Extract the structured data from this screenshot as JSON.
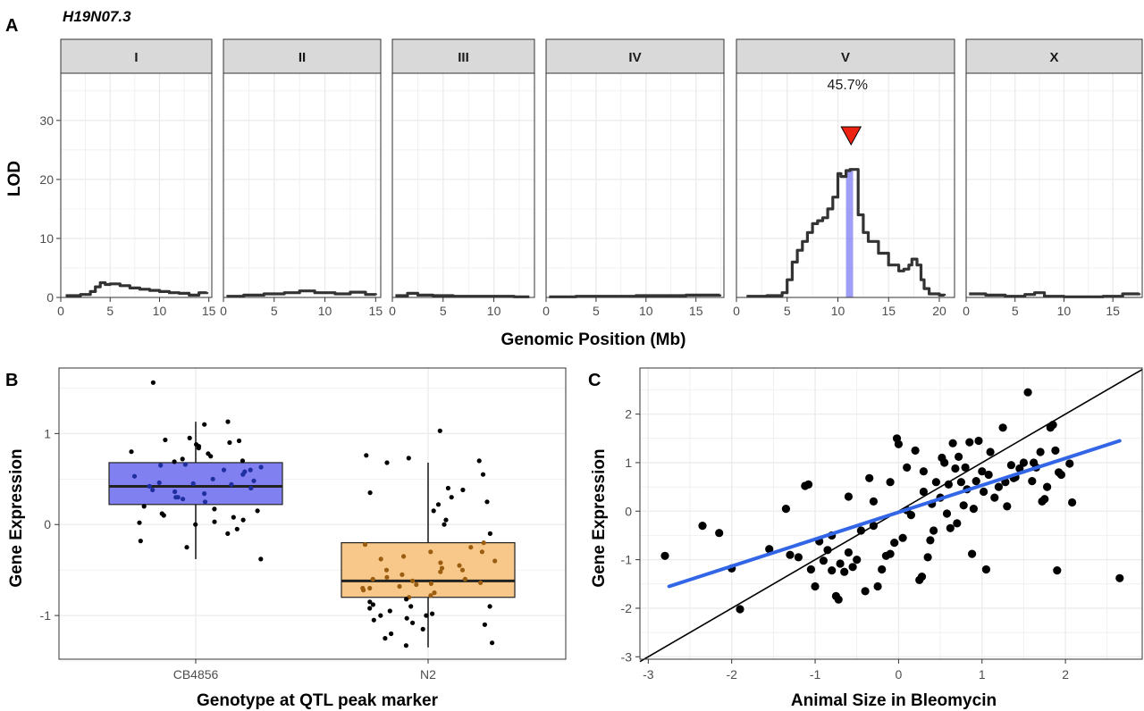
{
  "chart_data": [
    {
      "panel": "A",
      "type": "line",
      "title": "H19N07.3",
      "xlabel": "Genomic Position (Mb)",
      "ylabel": "LOD",
      "ylim": [
        0,
        38
      ],
      "yticks": [
        0,
        10,
        20,
        30
      ],
      "grid": true,
      "facets": [
        {
          "label": "I",
          "xlim": [
            0,
            15.3
          ],
          "xticks": [
            0,
            5,
            10,
            15
          ],
          "x": [
            0.5,
            2,
            3,
            3.5,
            4,
            4.5,
            5,
            6,
            7,
            8,
            9,
            10,
            11,
            12,
            13,
            14,
            14.8
          ],
          "y": [
            0.3,
            0.5,
            1,
            1.8,
            2.5,
            2.2,
            2.3,
            2,
            1.6,
            1.4,
            1.2,
            1,
            0.8,
            0.7,
            0.4,
            0.8,
            0.9
          ]
        },
        {
          "label": "II",
          "xlim": [
            0,
            15.5
          ],
          "xticks": [
            0,
            5,
            10,
            15
          ],
          "x": [
            0.3,
            2,
            4,
            6,
            7.5,
            9,
            11,
            12.5,
            14,
            15
          ],
          "y": [
            0.2,
            0.4,
            0.6,
            0.8,
            1.1,
            0.8,
            0.6,
            0.9,
            0.5,
            0.4
          ]
        },
        {
          "label": "III",
          "xlim": [
            0,
            14
          ],
          "xticks": [
            0,
            5,
            10
          ],
          "x": [
            0.3,
            1.5,
            2.5,
            4,
            6,
            8,
            10,
            12,
            13.5
          ],
          "y": [
            0.3,
            0.7,
            0.4,
            0.3,
            0.2,
            0.2,
            0.2,
            0.1,
            0.1
          ]
        },
        {
          "label": "IV",
          "xlim": [
            0,
            17.8
          ],
          "xticks": [
            0,
            5,
            10,
            15
          ],
          "x": [
            0.3,
            3,
            6,
            9,
            12,
            14,
            16,
            17.4
          ],
          "y": [
            0.1,
            0.2,
            0.2,
            0.3,
            0.3,
            0.4,
            0.4,
            0.5
          ]
        },
        {
          "label": "V",
          "xlim": [
            0,
            21.5
          ],
          "xticks": [
            0,
            5,
            10,
            15,
            20
          ],
          "x": [
            1,
            3,
            4.5,
            5,
            5.5,
            6,
            6.5,
            7,
            7.5,
            8,
            8.5,
            9,
            9.5,
            10,
            10.3,
            10.8,
            11.2,
            11.6,
            12,
            12.5,
            13,
            14,
            15,
            16,
            16.5,
            17,
            17.3,
            17.8,
            18.2,
            18.5,
            19,
            20,
            20.5
          ],
          "y": [
            0.2,
            0.3,
            0.8,
            3,
            6,
            8,
            9.5,
            11,
            12.5,
            13,
            13.5,
            15,
            17,
            21,
            20.5,
            21.5,
            21.7,
            21.7,
            14,
            11,
            9.5,
            7.5,
            5.5,
            4.5,
            4.8,
            5.5,
            6.5,
            5.5,
            3,
            1.5,
            0.6,
            0.4,
            0.3
          ],
          "peak_annotation": "45.7%",
          "peak_x": 11.3,
          "interval": [
            10.8,
            11.5
          ]
        },
        {
          "label": "X",
          "xlim": [
            0,
            18
          ],
          "xticks": [
            0,
            5,
            10,
            15
          ],
          "x": [
            0.3,
            2,
            4,
            6,
            7,
            8,
            10,
            12,
            14,
            16,
            17.7
          ],
          "y": [
            0.6,
            0.4,
            0.2,
            0.5,
            0.8,
            0.2,
            0.1,
            0.1,
            0.2,
            0.6,
            0.7
          ]
        }
      ]
    },
    {
      "panel": "B",
      "type": "box",
      "xlabel": "Genotype at QTL peak marker",
      "ylabel": "Gene Expression",
      "ylim": [
        -1.48,
        1.72
      ],
      "yticks": [
        -1,
        0,
        1
      ],
      "grid": true,
      "categories": [
        "CB4856",
        "N2"
      ],
      "boxes": [
        {
          "category": "CB4856",
          "q1": 0.22,
          "median": 0.42,
          "q3": 0.68,
          "whisker_low": -0.38,
          "whisker_high": 1.13,
          "fill": "#8080f0"
        },
        {
          "category": "N2",
          "q1": -0.8,
          "median": -0.62,
          "q3": -0.2,
          "whisker_low": -1.35,
          "whisker_high": 0.68,
          "fill": "#f8c88a"
        }
      ],
      "points": [
        {
          "category": "CB4856",
          "values": [
            1.56,
            1.13,
            1.1,
            0.95,
            0.93,
            0.92,
            0.9,
            0.88,
            0.86,
            0.84,
            0.8,
            0.78,
            0.75,
            0.72,
            0.7,
            0.69,
            0.66,
            0.65,
            0.63,
            0.6,
            0.58,
            0.55,
            0.53,
            0.5,
            0.48,
            0.46,
            0.44,
            0.42,
            0.4,
            0.38,
            0.36,
            0.34,
            0.3,
            0.28,
            0.25,
            0.2,
            0.17,
            0.15,
            0.12,
            0.1,
            0.08,
            0.05,
            0.03,
            0.02,
            0.0,
            -0.05,
            -0.1,
            -0.18,
            -0.25,
            -0.38,
            0.6,
            0.45,
            0.3
          ]
        },
        {
          "category": "N2",
          "values": [
            1.03,
            0.76,
            0.73,
            0.7,
            0.68,
            0.55,
            0.4,
            0.38,
            0.35,
            0.3,
            0.25,
            0.22,
            0.15,
            0.05,
            0.0,
            -0.1,
            -0.2,
            -0.22,
            -0.25,
            -0.3,
            -0.35,
            -0.38,
            -0.4,
            -0.42,
            -0.45,
            -0.48,
            -0.5,
            -0.52,
            -0.55,
            -0.58,
            -0.6,
            -0.62,
            -0.64,
            -0.66,
            -0.68,
            -0.7,
            -0.72,
            -0.75,
            -0.78,
            -0.8,
            -0.82,
            -0.85,
            -0.88,
            -0.9,
            -0.92,
            -0.95,
            -0.98,
            -1.0,
            -1.03,
            -1.05,
            -1.08,
            -1.1,
            -1.15,
            -1.2,
            -1.25,
            -1.3,
            -1.33,
            -0.5,
            -0.65,
            -0.7,
            -0.3,
            -0.9,
            -1.0,
            -0.6
          ]
        }
      ]
    },
    {
      "panel": "C",
      "type": "scatter",
      "xlabel": "Animal Size in Bleomycin",
      "ylabel": "Gene Expression",
      "xlim": [
        -3.1,
        2.92
      ],
      "ylim": [
        -3.05,
        2.95
      ],
      "xticks": [
        -3,
        -2,
        -1,
        0,
        1,
        2
      ],
      "yticks": [
        -3,
        -2,
        -1,
        0,
        1,
        2
      ],
      "grid": true,
      "fit_line": {
        "x": [
          -2.75,
          2.65
        ],
        "y": [
          -1.55,
          1.45
        ],
        "color": "#3366e6"
      },
      "identity_line": {
        "x": [
          -3.1,
          2.92
        ],
        "y": [
          -3.1,
          2.92
        ],
        "color": "#000000"
      },
      "points": [
        {
          "x": -2.8,
          "y": -0.92
        },
        {
          "x": -2.35,
          "y": -0.3
        },
        {
          "x": -2.15,
          "y": -0.45
        },
        {
          "x": -2.0,
          "y": -1.18
        },
        {
          "x": -1.9,
          "y": -2.02
        },
        {
          "x": -1.55,
          "y": -0.78
        },
        {
          "x": -1.35,
          "y": 0.05
        },
        {
          "x": -1.3,
          "y": -0.9
        },
        {
          "x": -1.12,
          "y": 0.52
        },
        {
          "x": -1.08,
          "y": 0.55
        },
        {
          "x": -1.05,
          "y": -1.2
        },
        {
          "x": -1.0,
          "y": -1.55
        },
        {
          "x": -0.95,
          "y": -0.62
        },
        {
          "x": -0.9,
          "y": -1.02
        },
        {
          "x": -0.85,
          "y": -0.8
        },
        {
          "x": -0.8,
          "y": -1.22
        },
        {
          "x": -0.75,
          "y": -1.75
        },
        {
          "x": -0.72,
          "y": -1.82
        },
        {
          "x": -0.7,
          "y": -1.08
        },
        {
          "x": -0.65,
          "y": -1.25
        },
        {
          "x": -0.6,
          "y": -0.85
        },
        {
          "x": -0.55,
          "y": -1.15
        },
        {
          "x": -0.5,
          "y": -1.0
        },
        {
          "x": -0.45,
          "y": -0.4
        },
        {
          "x": -0.4,
          "y": -1.65
        },
        {
          "x": -0.35,
          "y": 0.68
        },
        {
          "x": -0.3,
          "y": -0.3
        },
        {
          "x": -0.25,
          "y": -1.55
        },
        {
          "x": -0.2,
          "y": -1.2
        },
        {
          "x": -0.15,
          "y": -0.92
        },
        {
          "x": -0.1,
          "y": -0.88
        },
        {
          "x": -0.05,
          "y": -0.65
        },
        {
          "x": -0.02,
          "y": 1.5
        },
        {
          "x": 0.0,
          "y": 1.38
        },
        {
          "x": 0.05,
          "y": -0.55
        },
        {
          "x": 0.1,
          "y": 0.02
        },
        {
          "x": 0.15,
          "y": -0.08
        },
        {
          "x": 0.2,
          "y": 1.25
        },
        {
          "x": 0.25,
          "y": -1.42
        },
        {
          "x": 0.28,
          "y": -1.35
        },
        {
          "x": 0.3,
          "y": 0.82
        },
        {
          "x": 0.35,
          "y": -0.95
        },
        {
          "x": 0.38,
          "y": -0.6
        },
        {
          "x": 0.4,
          "y": 0.15
        },
        {
          "x": 0.42,
          "y": -0.4
        },
        {
          "x": 0.45,
          "y": 0.6
        },
        {
          "x": 0.5,
          "y": 0.28
        },
        {
          "x": 0.52,
          "y": 1.1
        },
        {
          "x": 0.55,
          "y": 1.0
        },
        {
          "x": 0.58,
          "y": -0.05
        },
        {
          "x": 0.6,
          "y": 0.55
        },
        {
          "x": 0.65,
          "y": 1.4
        },
        {
          "x": 0.68,
          "y": 0.88
        },
        {
          "x": 0.7,
          "y": -0.25
        },
        {
          "x": 0.72,
          "y": 1.12
        },
        {
          "x": 0.75,
          "y": 0.6
        },
        {
          "x": 0.78,
          "y": 0.12
        },
        {
          "x": 0.8,
          "y": 0.9
        },
        {
          "x": 0.82,
          "y": 0.45
        },
        {
          "x": 0.85,
          "y": 1.42
        },
        {
          "x": 0.88,
          "y": -0.88
        },
        {
          "x": 0.9,
          "y": 0.05
        },
        {
          "x": 0.93,
          "y": 0.62
        },
        {
          "x": 0.96,
          "y": 1.45
        },
        {
          "x": 1.0,
          "y": 0.82
        },
        {
          "x": 1.02,
          "y": 0.4
        },
        {
          "x": 1.05,
          "y": -1.2
        },
        {
          "x": 1.08,
          "y": 0.75
        },
        {
          "x": 1.1,
          "y": 1.22
        },
        {
          "x": 1.15,
          "y": 0.28
        },
        {
          "x": 1.2,
          "y": 0.5
        },
        {
          "x": 1.25,
          "y": 1.72
        },
        {
          "x": 1.28,
          "y": 0.6
        },
        {
          "x": 1.3,
          "y": 0.1
        },
        {
          "x": 1.35,
          "y": 0.95
        },
        {
          "x": 1.38,
          "y": 0.68
        },
        {
          "x": 1.4,
          "y": 0.7
        },
        {
          "x": 1.45,
          "y": 0.88
        },
        {
          "x": 1.5,
          "y": 1.0
        },
        {
          "x": 1.55,
          "y": 2.45
        },
        {
          "x": 1.6,
          "y": 0.62
        },
        {
          "x": 1.62,
          "y": 1.0
        },
        {
          "x": 1.65,
          "y": 0.9
        },
        {
          "x": 1.7,
          "y": 1.22
        },
        {
          "x": 1.72,
          "y": 0.2
        },
        {
          "x": 1.75,
          "y": 0.25
        },
        {
          "x": 1.78,
          "y": 0.5
        },
        {
          "x": 1.82,
          "y": 1.72
        },
        {
          "x": 1.85,
          "y": 1.78
        },
        {
          "x": 1.88,
          "y": 1.25
        },
        {
          "x": 1.9,
          "y": -1.22
        },
        {
          "x": 1.92,
          "y": 0.8
        },
        {
          "x": 1.95,
          "y": 0.75
        },
        {
          "x": 2.05,
          "y": 0.98
        },
        {
          "x": 2.08,
          "y": 0.18
        },
        {
          "x": 2.65,
          "y": -1.38
        },
        {
          "x": -0.6,
          "y": 0.3
        },
        {
          "x": -0.3,
          "y": 0.2
        },
        {
          "x": -0.1,
          "y": 0.6
        },
        {
          "x": 0.1,
          "y": 0.9
        },
        {
          "x": -0.8,
          "y": -0.5
        },
        {
          "x": -1.2,
          "y": -0.95
        },
        {
          "x": 0.3,
          "y": 0.4
        },
        {
          "x": 0.62,
          "y": -0.35
        }
      ]
    }
  ],
  "labels": {
    "panel_a_letter": "A",
    "panel_b_letter": "B",
    "panel_c_letter": "C"
  },
  "colors": {
    "strip_fill": "#d9d9d9",
    "grid": "#ebebeb",
    "lod_line": "#333333",
    "peak_marker": "#ee2211",
    "interval_fill": "#8d8df5",
    "cb4856_points": "#1f2f9f",
    "n2_points": "#9b5d10",
    "panel_c_points": "#000000"
  }
}
